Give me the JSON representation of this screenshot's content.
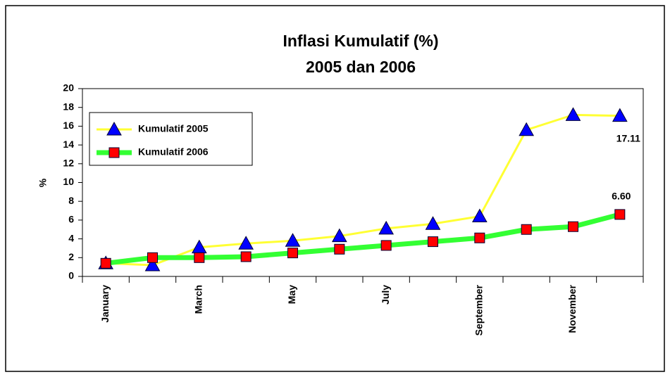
{
  "chart_data": {
    "type": "line",
    "title": "Inflasi Kumulatif (%)",
    "subtitle": "2005 dan 2006",
    "y_label": "%",
    "categories": [
      "January",
      null,
      "March",
      null,
      "May",
      null,
      "July",
      null,
      "September",
      null,
      "November",
      null
    ],
    "series": [
      {
        "name": "Kumulatif 2005",
        "color": "#ffff33",
        "marker": "triangle",
        "marker_color": "#0000ff",
        "values": [
          1.4,
          1.2,
          3.1,
          3.5,
          3.8,
          4.3,
          5.1,
          5.6,
          6.4,
          15.6,
          17.2,
          17.11
        ],
        "value_labels": [
          null,
          null,
          null,
          null,
          null,
          null,
          null,
          null,
          null,
          null,
          null,
          "17.11"
        ]
      },
      {
        "name": "Kumulatif 2006",
        "color": "#33ff33",
        "marker": "square",
        "marker_color": "#ff0000",
        "values": [
          1.4,
          2.0,
          2.0,
          2.1,
          2.5,
          2.9,
          3.3,
          3.7,
          4.1,
          5.0,
          5.3,
          6.6
        ],
        "value_labels": [
          null,
          null,
          null,
          null,
          null,
          null,
          null,
          null,
          null,
          null,
          null,
          "6.60"
        ]
      }
    ],
    "ylim": [
      0,
      20
    ],
    "yticks": [
      0,
      2,
      4,
      6,
      8,
      10,
      12,
      14,
      16,
      18,
      20
    ]
  }
}
